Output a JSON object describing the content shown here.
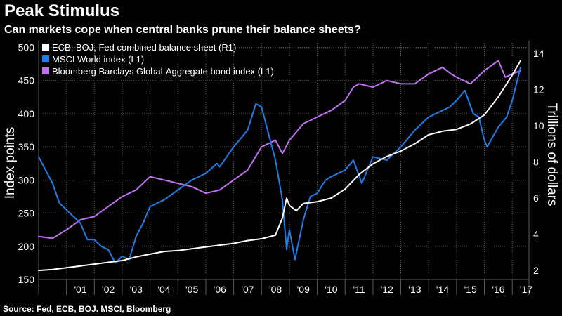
{
  "header": {
    "title": "Peak Stimulus",
    "subtitle": "Can markets cope when central banks prune their balance sheets?"
  },
  "footer": {
    "source": "Source: Fed, ECB, BOJ. MSCI, Bloomberg"
  },
  "colors": {
    "background": "#000000",
    "grid": "#5a5a5a",
    "text": "#ffffff",
    "balance_sheet": "#ffffff",
    "msci_world": "#1f7de8",
    "bloomberg_barclays": "#c070f0"
  },
  "chart_data": {
    "type": "line",
    "title": "Peak Stimulus",
    "subtitle": "Can markets cope when central banks prune their balance sheets?",
    "x_tick_labels": [
      "'01",
      "'02",
      "'03",
      "'04",
      "'05",
      "'06",
      "'07",
      "'08",
      "'09",
      "'10",
      "'11",
      "'12",
      "'13",
      "'14",
      "'15",
      "'16",
      "'17"
    ],
    "x_range": [
      2000.0,
      2017.6
    ],
    "left_axis": {
      "label": "Index points",
      "range": [
        150,
        510
      ],
      "ticks": [
        150,
        200,
        250,
        300,
        350,
        400,
        450,
        500
      ],
      "tick_labels": [
        "150",
        "200",
        "250",
        "300",
        "350",
        "400",
        "450",
        "500"
      ]
    },
    "right_axis": {
      "label": "Trillions of dollars",
      "range": [
        1.5,
        14.7
      ],
      "ticks": [
        2,
        4,
        6,
        8,
        10,
        12,
        14
      ],
      "tick_labels": [
        "2",
        "4",
        "6",
        "8",
        "10",
        "12",
        "14"
      ]
    },
    "grid": true,
    "legend_position": "top-left",
    "series": [
      {
        "name": "ECB, BOJ, Fed combined balance sheet (R1)",
        "axis": "right",
        "color": "#ffffff",
        "x": [
          2000.0,
          2000.5,
          2001.0,
          2001.5,
          2002.0,
          2002.5,
          2003.0,
          2003.5,
          2004.0,
          2004.5,
          2005.0,
          2005.5,
          2006.0,
          2006.5,
          2007.0,
          2007.5,
          2008.0,
          2008.5,
          2008.75,
          2008.9,
          2009.0,
          2009.25,
          2009.5,
          2010.0,
          2010.5,
          2011.0,
          2011.5,
          2012.0,
          2012.5,
          2013.0,
          2013.5,
          2014.0,
          2014.5,
          2015.0,
          2015.5,
          2016.0,
          2016.5,
          2017.0,
          2017.3
        ],
        "values": [
          2.0,
          2.05,
          2.15,
          2.25,
          2.35,
          2.45,
          2.55,
          2.75,
          2.9,
          3.05,
          3.1,
          3.2,
          3.3,
          3.4,
          3.5,
          3.65,
          3.75,
          3.95,
          4.9,
          6.0,
          5.6,
          5.3,
          5.7,
          5.8,
          6.0,
          6.5,
          7.3,
          7.9,
          8.3,
          8.6,
          9.0,
          9.5,
          9.7,
          9.8,
          10.1,
          10.6,
          11.6,
          12.8,
          13.6
        ]
      },
      {
        "name": "MSCI World index (L1)",
        "axis": "left",
        "color": "#1f7de8",
        "x": [
          2000.0,
          2000.25,
          2000.5,
          2000.75,
          2001.0,
          2001.25,
          2001.5,
          2001.75,
          2002.0,
          2002.25,
          2002.5,
          2002.75,
          2003.0,
          2003.25,
          2003.5,
          2003.75,
          2004.0,
          2004.5,
          2005.0,
          2005.5,
          2006.0,
          2006.4,
          2006.5,
          2007.0,
          2007.5,
          2007.8,
          2008.0,
          2008.5,
          2008.75,
          2008.9,
          2009.0,
          2009.2,
          2009.5,
          2009.75,
          2010.0,
          2010.3,
          2010.5,
          2010.75,
          2011.0,
          2011.3,
          2011.6,
          2011.75,
          2012.0,
          2012.5,
          2013.0,
          2013.5,
          2014.0,
          2014.5,
          2014.75,
          2015.0,
          2015.3,
          2015.6,
          2015.8,
          2016.0,
          2016.1,
          2016.5,
          2016.8,
          2017.0,
          2017.3
        ],
        "values": [
          335,
          315,
          295,
          265,
          255,
          245,
          235,
          210,
          210,
          200,
          195,
          175,
          185,
          180,
          215,
          235,
          260,
          270,
          285,
          300,
          310,
          325,
          320,
          350,
          375,
          415,
          410,
          330,
          270,
          195,
          225,
          180,
          240,
          275,
          280,
          300,
          305,
          310,
          315,
          330,
          295,
          310,
          335,
          330,
          350,
          375,
          395,
          405,
          410,
          420,
          435,
          400,
          395,
          360,
          350,
          380,
          395,
          420,
          470
        ]
      },
      {
        "name": "Bloomberg Barclays Global-Aggregate bond index (L1)",
        "axis": "left",
        "color": "#c070f0",
        "x": [
          2000.0,
          2000.5,
          2001.0,
          2001.5,
          2002.0,
          2002.5,
          2003.0,
          2003.5,
          2004.0,
          2004.5,
          2005.0,
          2005.5,
          2006.0,
          2006.5,
          2007.0,
          2007.5,
          2008.0,
          2008.5,
          2008.75,
          2009.0,
          2009.5,
          2010.0,
          2010.5,
          2011.0,
          2011.3,
          2011.5,
          2012.0,
          2012.5,
          2013.0,
          2013.5,
          2014.0,
          2014.5,
          2014.8,
          2015.0,
          2015.5,
          2016.0,
          2016.5,
          2016.75,
          2017.0,
          2017.3
        ],
        "values": [
          215,
          212,
          225,
          240,
          245,
          260,
          275,
          285,
          305,
          300,
          295,
          290,
          280,
          285,
          300,
          315,
          350,
          360,
          340,
          360,
          385,
          395,
          405,
          420,
          440,
          445,
          440,
          450,
          445,
          445,
          460,
          470,
          460,
          455,
          445,
          465,
          480,
          455,
          460,
          465
        ]
      }
    ]
  }
}
